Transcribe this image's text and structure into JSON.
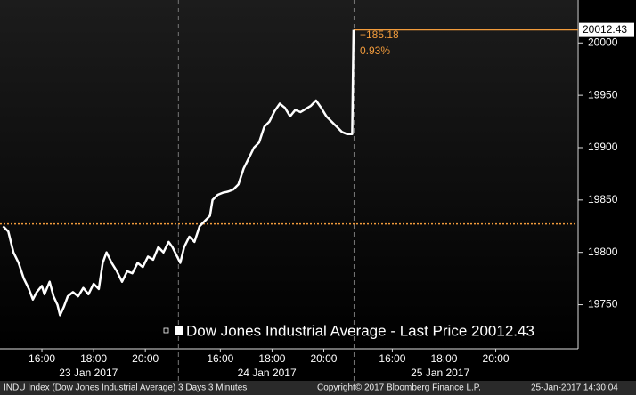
{
  "chart_data": {
    "type": "line",
    "x": [
      0,
      0.2,
      0.4,
      0.6,
      0.8,
      1.0,
      1.15,
      1.3,
      1.5,
      1.6,
      1.8,
      1.95,
      2.1,
      2.2,
      2.35,
      2.5,
      2.7,
      2.9,
      3.1,
      3.3,
      3.5,
      3.7,
      3.85,
      4.0,
      4.2,
      4.4,
      4.6,
      4.8,
      5.0,
      5.2,
      5.4,
      5.6,
      5.8,
      6.0,
      6.2,
      6.4,
      6.55,
      6.85,
      7.0,
      7.2,
      7.4,
      7.6,
      7.8,
      8.0,
      8.1,
      8.3,
      8.5,
      8.7,
      8.9,
      9.1,
      9.3,
      9.5,
      9.7,
      9.9,
      10.1,
      10.3,
      10.5,
      10.7,
      10.9,
      11.1,
      11.3,
      11.5,
      11.7,
      11.9,
      12.1,
      12.3,
      12.5,
      12.7,
      12.9,
      13.1,
      13.3,
      13.5,
      13.55
    ],
    "series": [
      {
        "name": "Dow Jones Industrial Average - Last Price 20012.43",
        "color": "#ffffff",
        "values": [
          19825,
          19820,
          19800,
          19790,
          19775,
          19765,
          19755,
          19762,
          19768,
          19760,
          19772,
          19758,
          19750,
          19740,
          19748,
          19758,
          19762,
          19758,
          19766,
          19760,
          19770,
          19765,
          19790,
          19800,
          19790,
          19782,
          19772,
          19782,
          19780,
          19790,
          19786,
          19796,
          19793,
          19805,
          19800,
          19810,
          19805,
          19790,
          19805,
          19815,
          19810,
          19825,
          19830,
          19835,
          19850,
          19855,
          19857,
          19858,
          19860,
          19865,
          19880,
          19890,
          19900,
          19905,
          19920,
          19925,
          19935,
          19942,
          19938,
          19930,
          19936,
          19934,
          19937,
          19940,
          19945,
          19938,
          19930,
          19925,
          19920,
          19915,
          19913,
          19913,
          20012.43
        ]
      }
    ],
    "annotations": [
      "+185.18",
      "0.93%"
    ],
    "reference_line": 19827.25,
    "xlim": [
      -0.12,
      22.2
    ],
    "ylim": [
      19708,
      20041
    ],
    "yticks": [
      19750,
      19800,
      19850,
      19900,
      19950,
      20000
    ],
    "xticks": [
      {
        "value": 1.5,
        "label": "16:00"
      },
      {
        "value": 3.5,
        "label": "18:00"
      },
      {
        "value": 5.5,
        "label": "20:00"
      },
      {
        "value": 8.4,
        "label": "16:00"
      },
      {
        "value": 10.4,
        "label": "18:00"
      },
      {
        "value": 12.4,
        "label": "20:00"
      },
      {
        "value": 15.05,
        "label": "16:00"
      },
      {
        "value": 17.05,
        "label": "18:00"
      },
      {
        "value": 19.05,
        "label": "20:00"
      }
    ],
    "date_labels": [
      {
        "value": 3.3,
        "label": "23 Jan 2017"
      },
      {
        "value": 10.2,
        "label": "24 Jan 2017"
      },
      {
        "value": 16.9,
        "label": "25 Jan 2017"
      }
    ],
    "day_breaks": [
      6.78,
      13.57
    ],
    "footer": [
      "INDU Index (Dow Jones Industrial Average) 3 Days 3 Minutes",
      "Copyright© 2017 Bloomberg Finance L.P.",
      "25-Jan-2017 14:30:04"
    ]
  }
}
